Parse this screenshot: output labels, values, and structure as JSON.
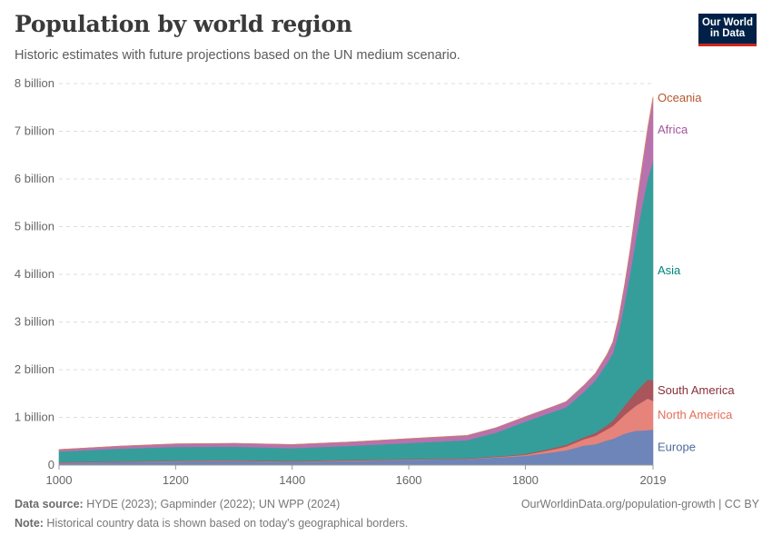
{
  "title": "Population by world region",
  "subtitle": "Historic estimates with future projections based on the UN medium scenario.",
  "logo": {
    "line1": "Our World",
    "line2": "in Data",
    "bg": "#002147",
    "accent": "#ce261e"
  },
  "footer": {
    "source_label": "Data source:",
    "source_text": " HYDE (2023); Gapminder (2022); UN WPP (2024)",
    "note_label": "Note:",
    "note_text": " Historical country data is shown based on today's geographical borders.",
    "credit": "OurWorldinData.org/population-growth | CC BY"
  },
  "chart_data": {
    "type": "area",
    "stacked": true,
    "x": [
      1000,
      1100,
      1200,
      1300,
      1400,
      1500,
      1600,
      1700,
      1750,
      1800,
      1850,
      1870,
      1900,
      1920,
      1940,
      1950,
      1960,
      1970,
      1980,
      1990,
      2000,
      2010,
      2019
    ],
    "y_ticks": [
      "0",
      "1 billion",
      "2 billion",
      "3 billion",
      "4 billion",
      "5 billion",
      "6 billion",
      "7 billion",
      "8 billion"
    ],
    "x_ticks": [
      "1000",
      "1200",
      "1400",
      "1600",
      "1800",
      "2019"
    ],
    "ylim": [
      0,
      8000000000
    ],
    "xlim": [
      1000,
      2019
    ],
    "grid": true,
    "series": [
      {
        "name": "Europe",
        "color": "#6d85b8",
        "label_color": "#4c6a9c",
        "values": [
          50000000,
          62000000,
          78000000,
          85000000,
          65000000,
          90000000,
          110000000,
          125000000,
          160000000,
          195000000,
          275000000,
          310000000,
          410000000,
          440000000,
          520000000,
          550000000,
          605000000,
          657000000,
          694000000,
          721000000,
          726000000,
          736000000,
          747000000
        ]
      },
      {
        "name": "North America",
        "color": "#e6837a",
        "label_color": "#e56e5a",
        "values": [
          6000000,
          7000000,
          8000000,
          8000000,
          8000000,
          9000000,
          8000000,
          7000000,
          10000000,
          20000000,
          60000000,
          80000000,
          130000000,
          175000000,
          230000000,
          270000000,
          330000000,
          395000000,
          460000000,
          528000000,
          598000000,
          662000000,
          600000000
        ]
      },
      {
        "name": "South America",
        "color": "#a8555c",
        "label_color": "#883039",
        "values": [
          10000000,
          11000000,
          12000000,
          13000000,
          14000000,
          14000000,
          10000000,
          10000000,
          12000000,
          17000000,
          30000000,
          36000000,
          43000000,
          60000000,
          88000000,
          115000000,
          148000000,
          191000000,
          241000000,
          296000000,
          349000000,
          397000000,
          430000000
        ]
      },
      {
        "name": "Asia",
        "color": "#359e9a",
        "label_color": "#00847e",
        "values": [
          220000000,
          265000000,
          285000000,
          280000000,
          270000000,
          290000000,
          335000000,
          380000000,
          500000000,
          680000000,
          760000000,
          790000000,
          947000000,
          1100000000,
          1300000000,
          1404000000,
          1700000000,
          2142000000,
          2650000000,
          3226000000,
          3741000000,
          4210000000,
          4601000000
        ]
      },
      {
        "name": "Africa",
        "color": "#b872ad",
        "label_color": "#a2559c",
        "values": [
          40000000,
          50000000,
          60000000,
          70000000,
          73000000,
          80000000,
          90000000,
          97000000,
          100000000,
          102000000,
          111000000,
          115000000,
          133000000,
          141000000,
          172000000,
          228000000,
          285000000,
          366000000,
          479000000,
          630000000,
          811000000,
          1039000000,
          1301000000
        ]
      },
      {
        "name": "Oceania",
        "color": "#d4845f",
        "label_color": "#b6562d",
        "values": [
          1000000,
          1500000,
          2000000,
          2000000,
          2000000,
          3000000,
          3000000,
          3000000,
          2000000,
          2000000,
          2000000,
          2000000,
          6000000,
          9000000,
          11000000,
          13000000,
          16000000,
          20000000,
          23000000,
          27000000,
          31000000,
          37000000,
          42000000
        ]
      }
    ]
  }
}
